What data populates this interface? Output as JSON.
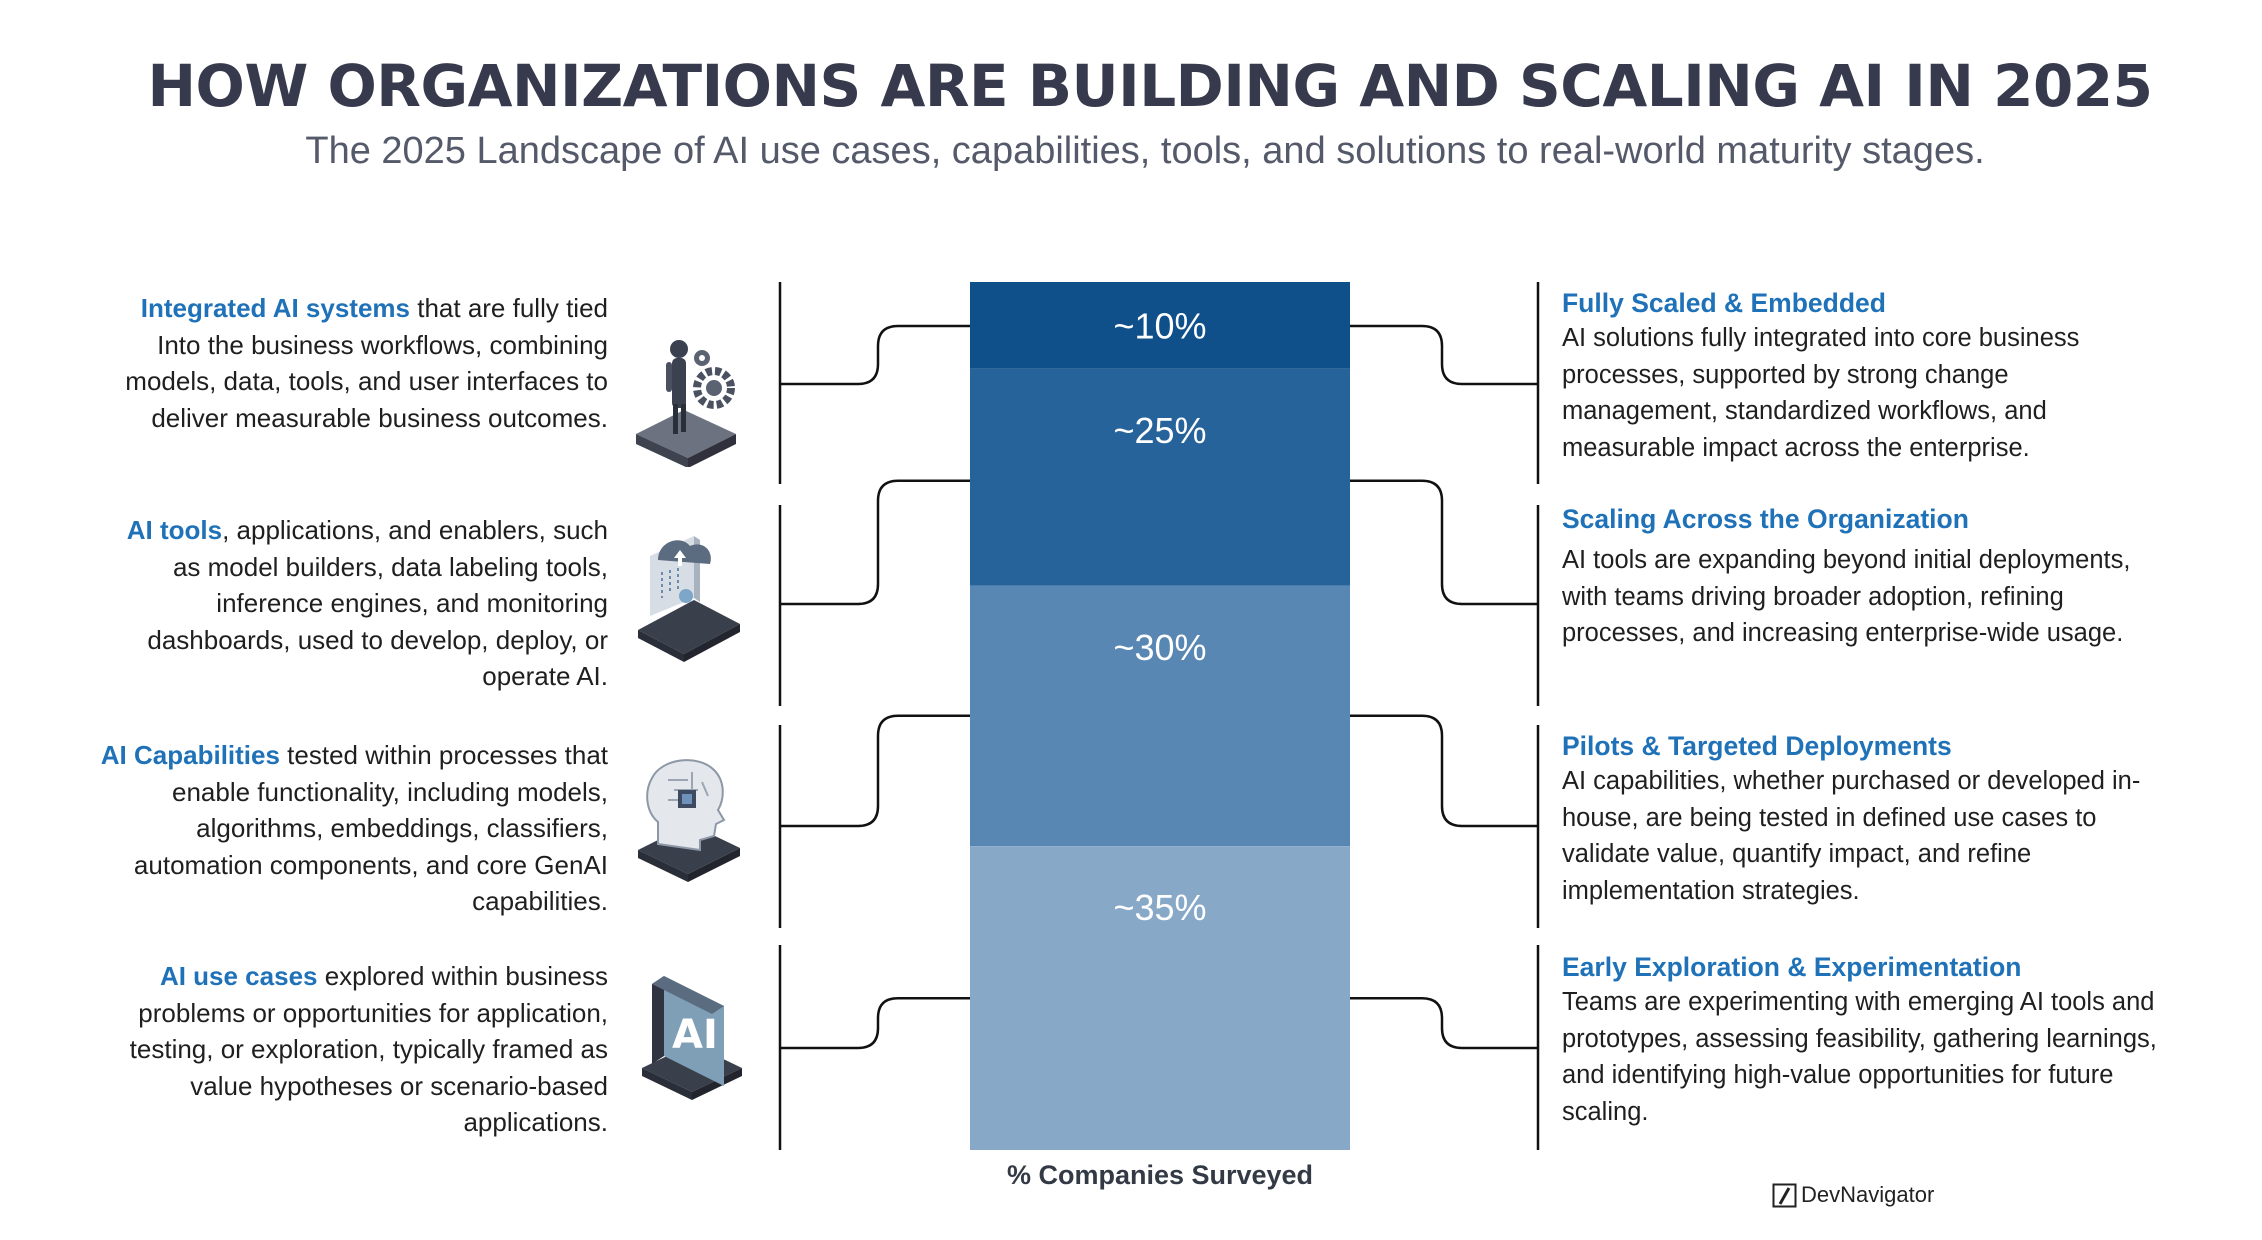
{
  "title": "HOW ORGANIZATIONS ARE BUILDING AND SCALING AI IN 2025",
  "subtitle": "The 2025 Landscape of AI use cases, capabilities, tools, and solutions to real-world maturity stages.",
  "left_items": [
    {
      "highlight": "Integrated AI systems",
      "text": " that are fully tied Into the business workflows, combining models, data, tools, and user interfaces to deliver measurable business outcomes.",
      "icon": "person-gear-icon"
    },
    {
      "highlight": "AI tools",
      "text": ", applications, and enablers, such as model builders, data labeling tools, inference engines, and monitoring dashboards, used to develop, deploy, or operate AI.",
      "icon": "cloud-upload-device-icon"
    },
    {
      "highlight": "AI Capabilities",
      "text": " tested within processes that enable functionality, including models, algorithms, embeddings, classifiers, automation components, and core GenAI capabilities.",
      "icon": "ai-head-chip-icon"
    },
    {
      "highlight": "AI use cases",
      "text": " explored within business problems or opportunities for application, testing, or exploration, typically framed as value hypotheses or scenario-based applications.",
      "icon": "ai-tile-icon"
    }
  ],
  "right_items": [
    {
      "title": "Fully Scaled & Embedded",
      "text": "AI solutions fully integrated into core business processes, supported by strong change management, standardized workflows, and measurable impact across the enterprise."
    },
    {
      "title": "Scaling Across the Organization",
      "text": "AI tools are expanding beyond initial deployments, with teams driving broader adoption, refining processes, and increasing enterprise-wide usage."
    },
    {
      "title": "Pilots & Targeted Deployments",
      "text": "AI capabilities, whether purchased or developed in-house, are being tested in defined use cases to validate value, quantify impact, and refine implementation strategies."
    },
    {
      "title": "Early Exploration & Experimentation",
      "text": "Teams are experimenting with emerging AI tools and prototypes, assessing feasibility, gathering learnings, and identifying high-value opportunities for future scaling."
    }
  ],
  "chart_data": {
    "type": "bar",
    "stacked": true,
    "categories": [
      "% Companies Surveyed"
    ],
    "series": [
      {
        "label": "~10%",
        "value": 10,
        "color": "#0f4f8a"
      },
      {
        "label": "~25%",
        "value": 25,
        "color": "#26639a"
      },
      {
        "label": "~30%",
        "value": 30,
        "color": "#5987b4"
      },
      {
        "label": "~35%",
        "value": 35,
        "color": "#88a8c8"
      }
    ],
    "xlabel": "% Companies Surveyed",
    "label_color": "#ffffff"
  },
  "brand": {
    "name": "DevNavigator",
    "icon": "slash-box-icon"
  },
  "colors": {
    "title": "#373a4d",
    "subtitle": "#555a6a",
    "accent": "#1f72b8",
    "connector": "#111111"
  }
}
